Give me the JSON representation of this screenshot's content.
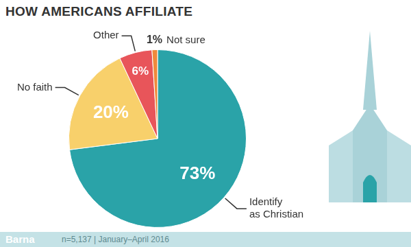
{
  "chart_data": {
    "type": "pie",
    "title": "HOW AMERICANS AFFILIATE",
    "categories": [
      "Identify as Christian",
      "No faith",
      "Other",
      "Not sure"
    ],
    "values": [
      73,
      20,
      6,
      1
    ],
    "value_labels": [
      "73%",
      "20%",
      "6%",
      "1%"
    ],
    "colors": [
      "#2aa3a8",
      "#f8d06b",
      "#e8555a",
      "#f08a3c"
    ],
    "data_labels": true,
    "source": "Barna",
    "note": "n=5,137 | January–April 2016"
  }
}
